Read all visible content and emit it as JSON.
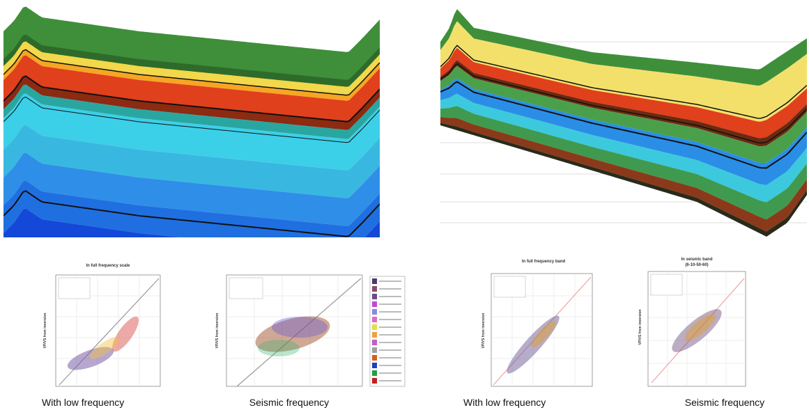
{
  "figure": {
    "panels": [
      {
        "title": "In full frequency scale",
        "y_axis_label": "VP/VS from inversion",
        "caption": "With low frequency"
      },
      {
        "y_axis_label": "VP/VS from inversion",
        "caption": "Seismic frequency"
      },
      {
        "title": "In full frequency band",
        "y_axis_label": "VP/VS from inversion",
        "caption": "With low frequency"
      },
      {
        "title": "In seismic band",
        "subtitle": "(6-10-50-60)",
        "y_axis_label": "VP/VS from inversion",
        "caption": "Seismic frequency"
      }
    ]
  }
}
